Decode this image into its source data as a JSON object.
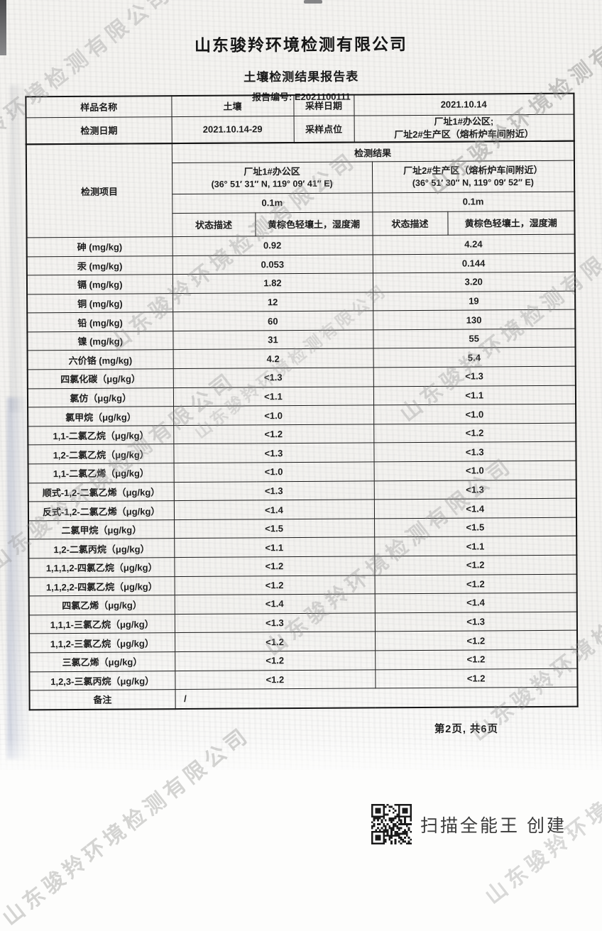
{
  "header": {
    "company": "山东骏羚环境检测有限公司",
    "title": "土壤检测结果报告表",
    "report_line": "报告编号: E2021100111"
  },
  "info": {
    "sample_name_label": "样品名称",
    "sample_name": "土壤",
    "sampling_date_label": "采样日期",
    "sampling_date": "2021.10.14",
    "test_date_label": "检测日期",
    "test_date": "2021.10.14-29",
    "sampling_site_label": "采样点位",
    "sampling_site_line1": "厂址1#办公区;",
    "sampling_site_line2": "厂址2#生产区（熔析炉车间附近）"
  },
  "results": {
    "section_title": "检测结果",
    "item_col_label": "检测项目",
    "site1": {
      "name": "厂址1#办公区",
      "coords": "(36° 51′ 31″ N, 119° 09′ 41″ E)",
      "depth": "0.1m",
      "state_label": "状态描述",
      "state": "黄棕色轻壤土，湿度潮"
    },
    "site2": {
      "name": "厂址2#生产区（熔析炉车间附近）",
      "coords": "(36° 51′ 30″ N, 119° 09′ 52″ E)",
      "depth": "0.1m",
      "state_label": "状态描述",
      "state": "黄棕色轻壤土，湿度潮"
    },
    "params": [
      {
        "name": "砷 (mg/kg)",
        "v1": "0.92",
        "v2": "4.24"
      },
      {
        "name": "汞 (mg/kg)",
        "v1": "0.053",
        "v2": "0.144"
      },
      {
        "name": "镉 (mg/kg)",
        "v1": "1.82",
        "v2": "3.20"
      },
      {
        "name": "铜 (mg/kg)",
        "v1": "12",
        "v2": "19"
      },
      {
        "name": "铅 (mg/kg)",
        "v1": "60",
        "v2": "130"
      },
      {
        "name": "镍 (mg/kg)",
        "v1": "31",
        "v2": "55"
      },
      {
        "name": "六价铬 (mg/kg)",
        "v1": "4.2",
        "v2": "5.4"
      },
      {
        "name": "四氯化碳（μg/kg）",
        "v1": "<1.3",
        "v2": "<1.3"
      },
      {
        "name": "氯仿（μg/kg）",
        "v1": "<1.1",
        "v2": "<1.1"
      },
      {
        "name": "氯甲烷（μg/kg）",
        "v1": "<1.0",
        "v2": "<1.0"
      },
      {
        "name": "1,1-二氯乙烷（μg/kg）",
        "v1": "<1.2",
        "v2": "<1.2"
      },
      {
        "name": "1,2-二氯乙烷（μg/kg）",
        "v1": "<1.3",
        "v2": "<1.3"
      },
      {
        "name": "1,1-二氯乙烯（μg/kg）",
        "v1": "<1.0",
        "v2": "<1.0"
      },
      {
        "name": "顺式-1,2-二氯乙烯（μg/kg）",
        "v1": "<1.3",
        "v2": "<1.3"
      },
      {
        "name": "反式-1,2-二氯乙烯（μg/kg）",
        "v1": "<1.4",
        "v2": "<1.4"
      },
      {
        "name": "二氯甲烷（μg/kg）",
        "v1": "<1.5",
        "v2": "<1.5"
      },
      {
        "name": "1,2-二氯丙烷（μg/kg）",
        "v1": "<1.1",
        "v2": "<1.1"
      },
      {
        "name": "1,1,1,2-四氯乙烷（μg/kg）",
        "v1": "<1.2",
        "v2": "<1.2"
      },
      {
        "name": "1,1,2,2-四氯乙烷（μg/kg）",
        "v1": "<1.2",
        "v2": "<1.2"
      },
      {
        "name": "四氯乙烯（μg/kg）",
        "v1": "<1.4",
        "v2": "<1.4"
      },
      {
        "name": "1,1,1-三氯乙烷（μg/kg）",
        "v1": "<1.3",
        "v2": "<1.3"
      },
      {
        "name": "1,1,2-三氯乙烷（μg/kg）",
        "v1": "<1.2",
        "v2": "<1.2"
      },
      {
        "name": "三氯乙烯（μg/kg）",
        "v1": "<1.2",
        "v2": "<1.2"
      },
      {
        "name": "1,2,3-三氯丙烷（μg/kg）",
        "v1": "<1.2",
        "v2": "<1.2"
      }
    ],
    "remark_label": "备注",
    "remark": "/"
  },
  "footer": {
    "page_note": "第2页, 共6页",
    "scanner_note": "扫描全能王 创建"
  },
  "watermark": {
    "text": "山东骏羚环境检测有限公司"
  },
  "colors": {
    "border": "#1c1c1c",
    "text": "#1d1d1d",
    "watermark": "#949492",
    "paper": "#f3f2ef"
  }
}
